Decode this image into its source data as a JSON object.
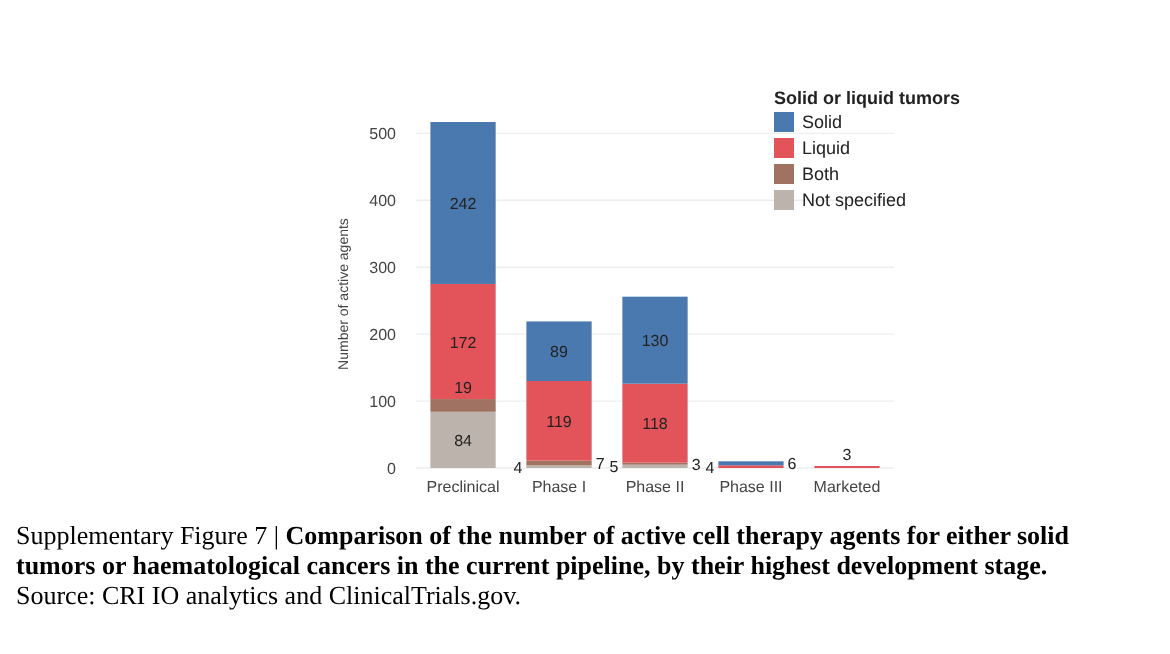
{
  "chart_data": {
    "type": "bar",
    "stacked": true,
    "title": "Supplementary Figure 7 | Comparison of the number of active cell therapy agents for either solid tumors or haematological cancers in the current pipeline, by their highest development stage.",
    "annotations": [
      "Source: CRI IO analytics and ClinicalTrials.gov."
    ],
    "ylabel": "Number of active agents",
    "legend_title": "Solid or liquid tumors",
    "categories": [
      "Preclinical",
      "Phase I",
      "Phase II",
      "Phase III",
      "Marketed"
    ],
    "series": [
      {
        "name": "Not specified",
        "color": "#bcb3ad",
        "values": [
          84,
          4,
          5,
          null,
          null
        ]
      },
      {
        "name": "Both",
        "color": "#a07261",
        "values": [
          19,
          7,
          3,
          null,
          null
        ]
      },
      {
        "name": "Liquid",
        "color": "#e3545a",
        "values": [
          172,
          119,
          118,
          4,
          3
        ]
      },
      {
        "name": "Solid",
        "color": "#4a79b0",
        "values": [
          242,
          89,
          130,
          6,
          null
        ]
      }
    ],
    "ylim": [
      0,
      520
    ],
    "yticks": [
      0,
      100,
      200,
      300,
      400,
      500
    ],
    "grid": "y",
    "legend": "top right",
    "data_labels": true
  }
}
